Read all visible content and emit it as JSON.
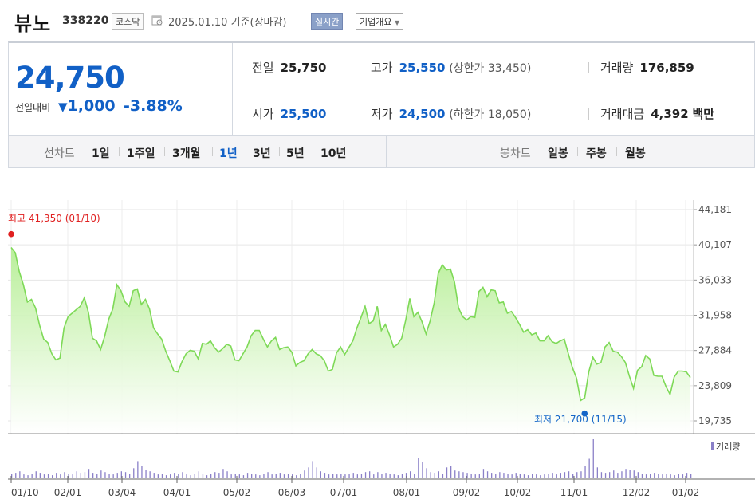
{
  "header": {
    "name": "뷰노",
    "code": "338220",
    "market": "코스닥",
    "date": "2025.01.10 기준(장마감)",
    "realtime_label": "실시간",
    "overview_label": "기업개요"
  },
  "quote": {
    "price": "24,750",
    "change_label": "전일대비",
    "change_value": "1,000",
    "change_pct": "-3.88%",
    "prev_label": "전일",
    "prev_value": "25,750",
    "high_label": "고가",
    "high_value": "25,550",
    "upper_limit": "(상한가 33,450)",
    "volume_label": "거래량",
    "volume_value": "176,859",
    "open_label": "시가",
    "open_value": "25,500",
    "low_label": "저가",
    "low_value": "24,500",
    "lower_limit": "(하한가 18,050)",
    "amount_label": "거래대금",
    "amount_value": "4,392",
    "amount_unit": "백만"
  },
  "periods": {
    "line_label": "선차트",
    "line_items": [
      "1일",
      "1주일",
      "3개월",
      "1년",
      "3년",
      "5년",
      "10년"
    ],
    "selected": "1년",
    "candle_label": "봉차트",
    "candle_items": [
      "일봉",
      "주봉",
      "월봉"
    ]
  },
  "colors": {
    "accent": "#1160c6",
    "line": "#7ed957",
    "area_top": "#bdf09e",
    "max_marker": "#e02020",
    "min_marker": "#1466c8",
    "volume": "#8a80c8"
  },
  "chart_data": {
    "type": "area",
    "x_tick_labels": [
      "01/10",
      "02/01",
      "03/04",
      "04/01",
      "05/02",
      "06/03",
      "07/01",
      "08/01",
      "09/02",
      "10/02",
      "11/01",
      "12/02",
      "01/02"
    ],
    "y_ticks": [
      44181,
      40107,
      36033,
      31958,
      27884,
      23809,
      19735
    ],
    "y_tick_labels": [
      "44,181",
      "40,107",
      "36,033",
      "31,958",
      "27,884",
      "23,809",
      "19,735"
    ],
    "ylim": [
      19735,
      44181
    ],
    "series": [
      {
        "values": [
          39800,
          39200,
          37000,
          35500,
          33500,
          33800,
          32800,
          30800,
          29200,
          28800,
          27500,
          26800,
          27000,
          30500,
          31800,
          32200,
          32600,
          33000,
          34000,
          32300,
          29300,
          29000,
          28000,
          29500,
          31500,
          32700,
          35500,
          34800,
          33500,
          33000,
          34800,
          35000,
          33200,
          33800,
          32700,
          30500,
          29800,
          29200,
          27800,
          26700,
          25500,
          25400,
          26600,
          27500,
          27900,
          27800,
          26900,
          28700,
          28600,
          29000,
          28200,
          27700,
          28100,
          28600,
          28400,
          26800,
          26700,
          27500,
          28300,
          29600,
          30200,
          30200,
          29200,
          28300,
          29000,
          29400,
          28000,
          28200,
          28300,
          27700,
          26100,
          26500,
          26700,
          27500,
          28000,
          27500,
          27300,
          26700,
          25500,
          25700,
          27600,
          28300,
          27400,
          28200,
          29000,
          30500,
          31700,
          33000,
          31000,
          31300,
          33000,
          30200,
          30900,
          29700,
          28300,
          28600,
          29300,
          31400,
          33900,
          31800,
          32300,
          31200,
          29800,
          31300,
          33400,
          36800,
          37800,
          37200,
          37300,
          35800,
          32800,
          31800,
          31400,
          31800,
          31700,
          34700,
          35200,
          34100,
          34900,
          34800,
          33400,
          33500,
          32200,
          32400,
          31700,
          30900,
          30000,
          30300,
          29700,
          29900,
          29000,
          29000,
          29600,
          28900,
          28700,
          29000,
          29200,
          27500,
          25900,
          24700,
          22100,
          22400,
          25400,
          27100,
          26300,
          26500,
          28300,
          28800,
          27800,
          27700,
          27200,
          26500,
          24900,
          23500,
          25600,
          26000,
          27300,
          26900,
          25000,
          24900,
          24900,
          23700,
          22800,
          24800,
          25500,
          25500,
          25400,
          24750
        ],
        "max": {
          "label": "최고",
          "value": "41,350",
          "date": "(01/10)"
        },
        "min": {
          "label": "최저",
          "value": "21,700",
          "date": "(11/15)"
        }
      }
    ],
    "volume_label": "거래량",
    "volume": [
      6,
      7,
      9,
      5,
      4,
      6,
      9,
      7,
      5,
      6,
      4,
      7,
      5,
      8,
      6,
      5,
      9,
      7,
      8,
      12,
      7,
      6,
      10,
      8,
      6,
      5,
      7,
      9,
      8,
      6,
      13,
      22,
      16,
      11,
      9,
      7,
      5,
      6,
      4,
      5,
      7,
      6,
      8,
      5,
      4,
      6,
      9,
      5,
      4,
      6,
      8,
      7,
      12,
      9,
      5,
      6,
      5,
      4,
      7,
      6,
      5,
      4,
      6,
      8,
      5,
      6,
      7,
      5,
      6,
      5,
      4,
      6,
      10,
      14,
      22,
      14,
      9,
      7,
      5,
      6,
      5,
      6,
      5,
      6,
      7,
      5,
      6,
      8,
      9,
      5,
      8,
      6,
      7,
      6,
      5,
      4,
      6,
      7,
      9,
      6,
      26,
      21,
      13,
      8,
      7,
      9,
      6,
      14,
      16,
      10,
      9,
      8,
      7,
      6,
      5,
      6,
      12,
      9,
      7,
      6,
      8,
      7,
      6,
      5,
      7,
      6,
      5,
      4,
      6,
      5,
      4,
      5,
      6,
      7,
      5,
      7,
      8,
      9,
      6,
      8,
      9,
      16,
      25,
      50,
      14,
      8,
      7,
      8,
      10,
      7,
      9,
      12,
      11,
      10,
      8,
      6,
      5,
      6,
      7,
      6,
      5,
      6,
      5,
      4,
      6,
      5,
      7,
      6
    ]
  }
}
